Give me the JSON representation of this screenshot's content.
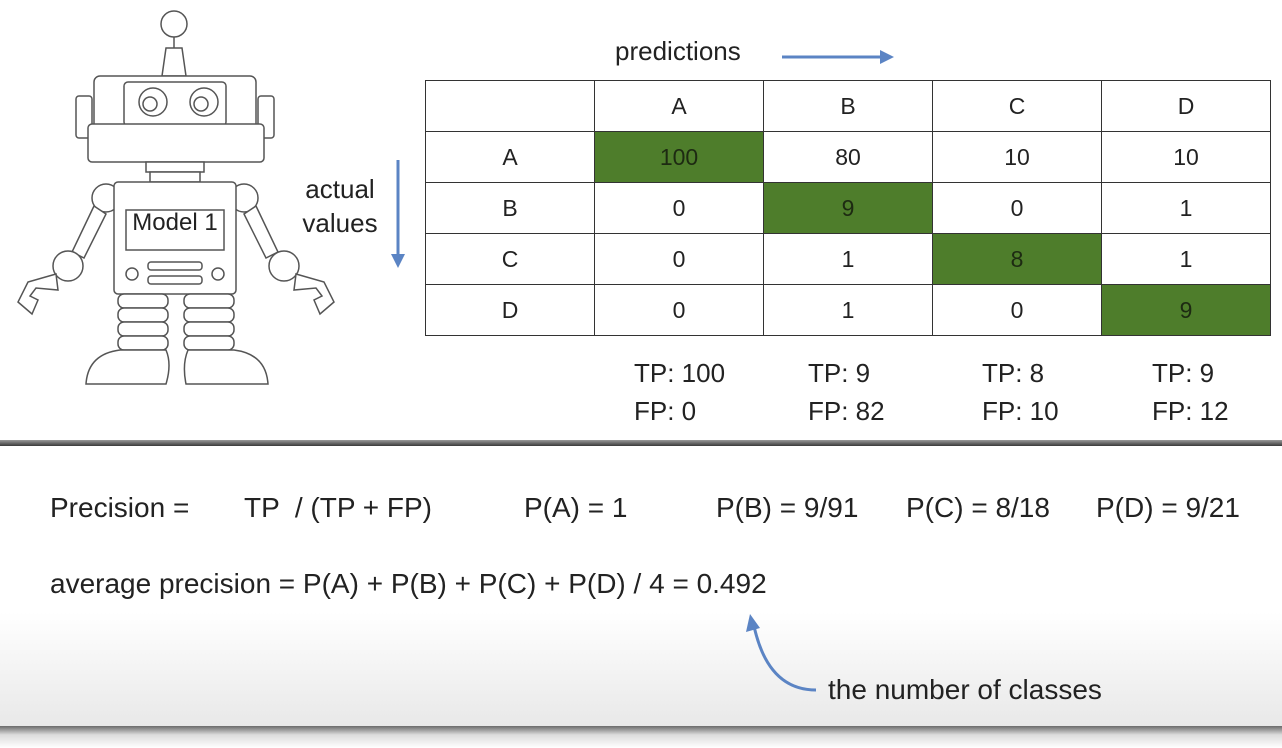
{
  "robot": {
    "label": "Model 1"
  },
  "axis_labels": {
    "predictions": "predictions",
    "actual_line1": "actual",
    "actual_line2": "values"
  },
  "matrix": {
    "columns": [
      "A",
      "B",
      "C",
      "D"
    ],
    "rows": [
      {
        "label": "A",
        "values": [
          "100",
          "80",
          "10",
          "10"
        ]
      },
      {
        "label": "B",
        "values": [
          "0",
          "9",
          "0",
          "1"
        ]
      },
      {
        "label": "C",
        "values": [
          "0",
          "1",
          "8",
          "1"
        ]
      },
      {
        "label": "D",
        "values": [
          "0",
          "1",
          "0",
          "9"
        ]
      }
    ],
    "diagonal_color": "#4e7d2b"
  },
  "metrics": [
    {
      "tp": "TP: 100",
      "fp": "FP: 0"
    },
    {
      "tp": "TP: 9",
      "fp": "FP: 82"
    },
    {
      "tp": "TP: 8",
      "fp": "FP: 10"
    },
    {
      "tp": "TP: 9",
      "fp": "FP: 12"
    }
  ],
  "formulas": {
    "precision_label": "Precision =",
    "precision_formula": "TP  / (TP + FP)",
    "pa": "P(A) = 1",
    "pb": "P(B) = 9/91",
    "pc": "P(C) = 8/18",
    "pd": "P(D) = 9/21",
    "average": "average precision = P(A) + P(B) + P(C) + P(D) / 4 = 0.492",
    "annotation": "the number of classes"
  },
  "colors": {
    "arrow": "#5b84c4",
    "grid": "#333333"
  }
}
